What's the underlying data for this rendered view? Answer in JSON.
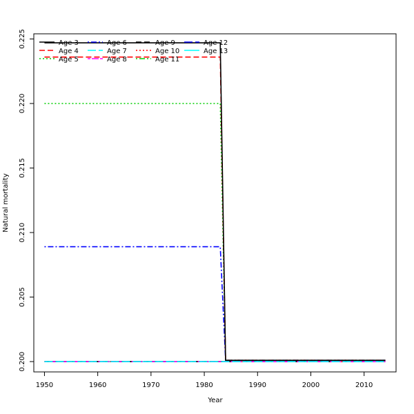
{
  "chart_data": {
    "type": "line",
    "title": "",
    "xlabel": "Year",
    "ylabel": "Natural mortality",
    "xlim": [
      1948,
      2016
    ],
    "ylim": [
      0.1992,
      0.2254
    ],
    "x_ticks": [
      1950,
      1960,
      1970,
      1980,
      1990,
      2000,
      2010
    ],
    "x_tick_labels": [
      "1950",
      "1960",
      "1970",
      "1980",
      "1990",
      "2000",
      "2010"
    ],
    "y_ticks": [
      0.2,
      0.205,
      0.21,
      0.215,
      0.22,
      0.225
    ],
    "y_tick_labels": [
      "0.200",
      "0.205",
      "0.210",
      "0.215",
      "0.220",
      "0.225"
    ],
    "grid": false,
    "legend": {
      "placement": "top-left",
      "columns": 4
    },
    "x": [
      1950,
      1983,
      1984,
      2014
    ],
    "series": [
      {
        "name": "Age 3",
        "values": [
          0.2247,
          0.2247,
          0.2001,
          0.2001
        ],
        "color": "#000000",
        "dash": "solid"
      },
      {
        "name": "Age 4",
        "values": [
          0.2236,
          0.2236,
          0.2001,
          0.2001
        ],
        "color": "#ff0000",
        "dash": "dashed"
      },
      {
        "name": "Age 5",
        "values": [
          0.22,
          0.22,
          0.2001,
          0.2001
        ],
        "color": "#00cd00",
        "dash": "dotted"
      },
      {
        "name": "Age 6",
        "values": [
          0.2089,
          0.2089,
          0.2001,
          0.2001
        ],
        "color": "#0000ff",
        "dash": "dotdash"
      },
      {
        "name": "Age 7",
        "values": [
          0.2,
          0.2,
          0.2,
          0.2
        ],
        "color": "#00ffff",
        "dash": "longdash"
      },
      {
        "name": "Age 8",
        "values": [
          0.2,
          0.2,
          0.2,
          0.2
        ],
        "color": "#ff00ff",
        "dash": "twodash"
      },
      {
        "name": "Age 9",
        "values": [
          0.2,
          0.2,
          0.2,
          0.2
        ],
        "color": "#000000",
        "dash": "dashed"
      },
      {
        "name": "Age 10",
        "values": [
          0.2,
          0.2,
          0.2,
          0.2
        ],
        "color": "#ff0000",
        "dash": "dotted"
      },
      {
        "name": "Age 11",
        "values": [
          0.2,
          0.2,
          0.2,
          0.2
        ],
        "color": "#00cd00",
        "dash": "dotdash"
      },
      {
        "name": "Age 12",
        "values": [
          0.2,
          0.2,
          0.2,
          0.2
        ],
        "color": "#0000ff",
        "dash": "longdash"
      },
      {
        "name": "Age 13",
        "values": [
          0.2,
          0.2,
          0.2,
          0.2
        ],
        "color": "#00ffff",
        "dash": "solid"
      }
    ]
  }
}
